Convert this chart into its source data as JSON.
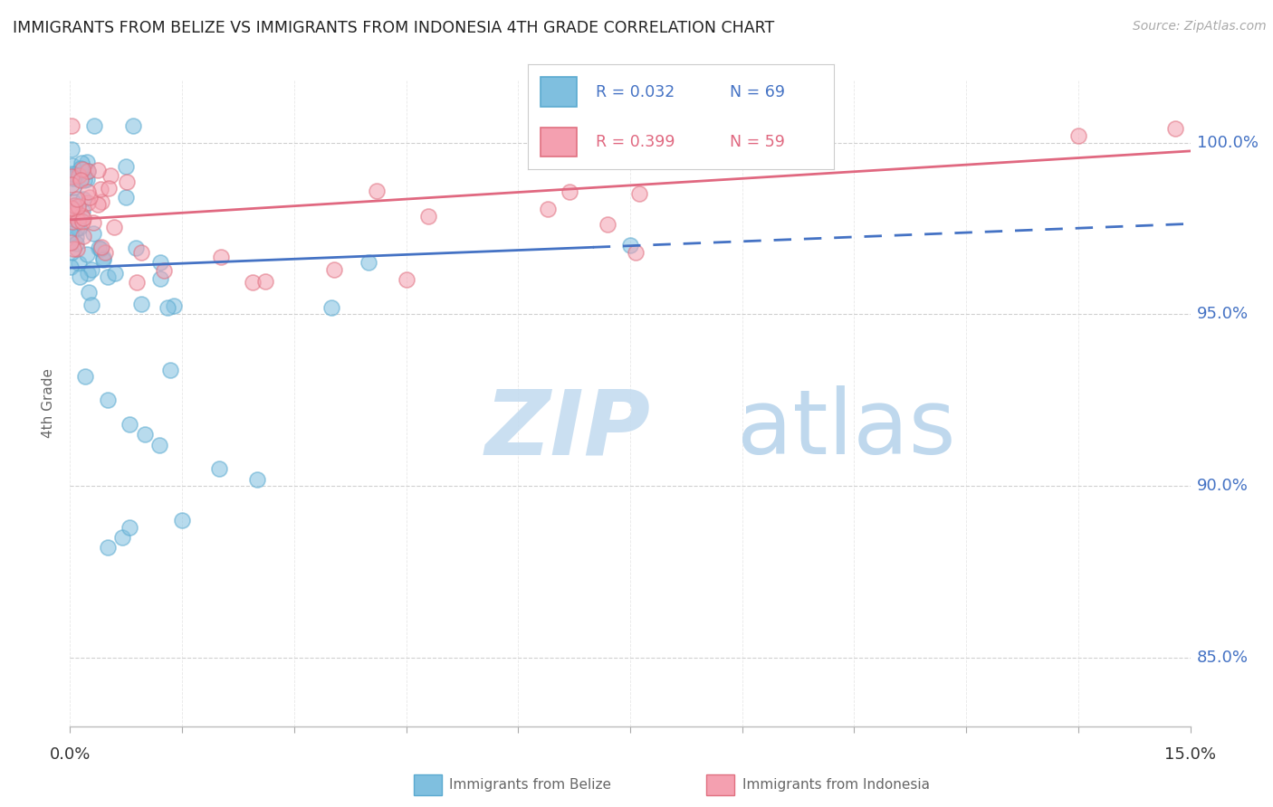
{
  "title": "IMMIGRANTS FROM BELIZE VS IMMIGRANTS FROM INDONESIA 4TH GRADE CORRELATION CHART",
  "source": "Source: ZipAtlas.com",
  "ylabel": "4th Grade",
  "xlim": [
    0.0,
    15.0
  ],
  "ylim": [
    83.0,
    101.8
  ],
  "yticks": [
    85.0,
    90.0,
    95.0,
    100.0
  ],
  "ytick_labels": [
    "85.0%",
    "90.0%",
    "95.0%",
    "100.0%"
  ],
  "belize_color": "#7fbfdf",
  "belize_edge_color": "#5aaad0",
  "indonesia_color": "#f4a0b0",
  "indonesia_edge_color": "#e07080",
  "belize_label": "Immigrants from Belize",
  "indonesia_label": "Immigrants from Indonesia",
  "belize_R": 0.032,
  "belize_N": 69,
  "indonesia_R": 0.399,
  "indonesia_N": 59,
  "trend_belize_color": "#4472c4",
  "trend_indonesia_color": "#e06880",
  "background_color": "#ffffff",
  "grid_color": "#d0d0d0",
  "watermark_ZIP_color": "#c5dcf0",
  "watermark_atlas_color": "#b8d4ec",
  "title_color": "#222222",
  "source_color": "#aaaaaa",
  "ytick_color": "#4472c4",
  "xtick_color": "#333333"
}
